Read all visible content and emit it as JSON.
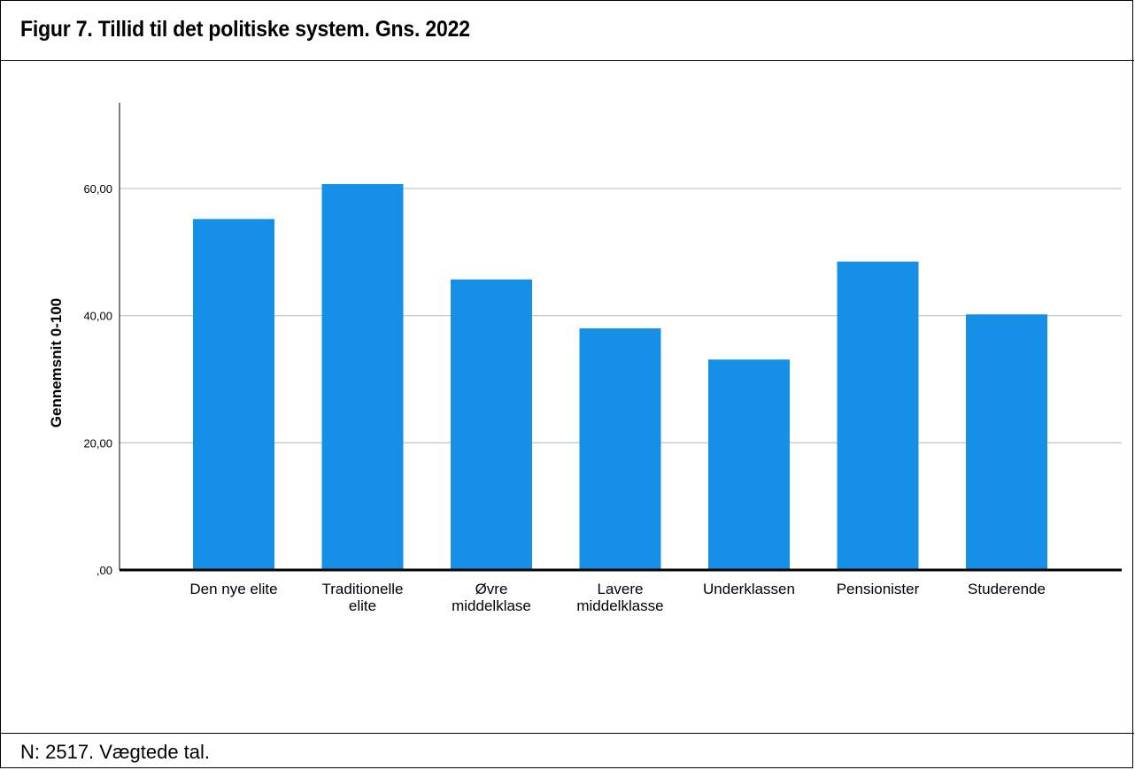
{
  "figure": {
    "title": "Figur 7. Tillid til det politiske system. Gns. 2022",
    "note": "N: 2517. Vægtede tal."
  },
  "colors": {
    "bar": "#1590e6",
    "gridline": "#c8c8c8",
    "axis": "#000000"
  },
  "chart_data": {
    "type": "bar",
    "categories": [
      [
        "Den nye elite"
      ],
      [
        "Traditionelle",
        "elite"
      ],
      [
        "Øvre",
        "middelklase"
      ],
      [
        "Lavere",
        "middelklasse"
      ],
      [
        "Underklassen"
      ],
      [
        "Pensionister"
      ],
      [
        "Studerende"
      ]
    ],
    "values": [
      55.2,
      60.7,
      45.7,
      38.0,
      33.1,
      48.5,
      40.2
    ],
    "ylabel": "Gennemsnit 0-100",
    "xlabel": "",
    "ylim": [
      0,
      73.5
    ],
    "yticks": [
      0,
      20,
      40,
      60
    ],
    "ytick_labels": [
      ",00",
      "20,00",
      "40,00",
      "60,00"
    ],
    "grid": true
  }
}
